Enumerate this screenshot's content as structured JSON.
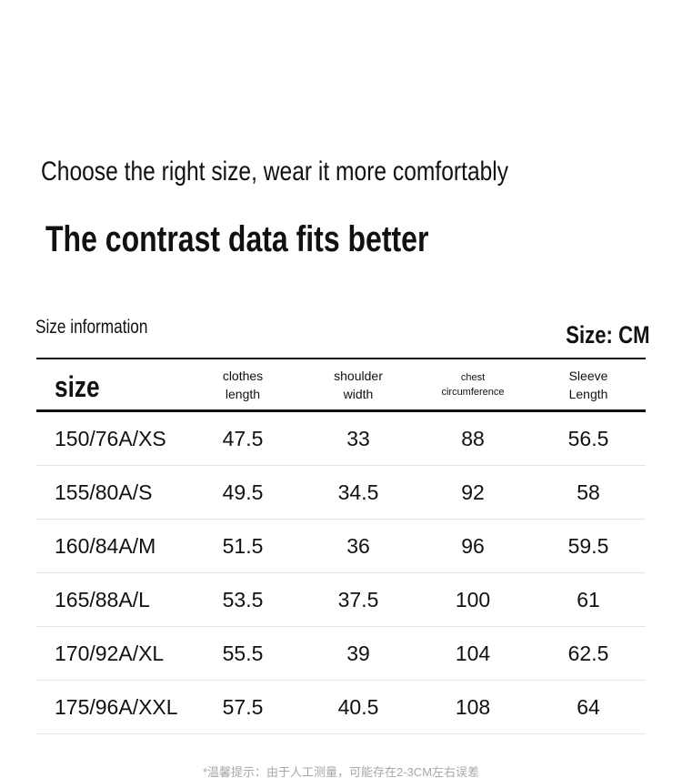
{
  "headline": "Choose the right size, wear it more comfortably",
  "subheadline": "The contrast data fits better",
  "section_label": "Size information",
  "unit_label": "Size: CM",
  "table": {
    "size_header": "size",
    "columns": [
      {
        "line1": "clothes",
        "line2": "length"
      },
      {
        "line1": "shoulder",
        "line2": "width"
      },
      {
        "line1": "chest",
        "line2": "circumference"
      },
      {
        "line1": "Sleeve",
        "line2": "Length"
      }
    ],
    "rows": [
      [
        "150/76A/XS",
        "47.5",
        "33",
        "88",
        "56.5"
      ],
      [
        "155/80A/S",
        "49.5",
        "34.5",
        "92",
        "58"
      ],
      [
        "160/84A/M",
        "51.5",
        "36",
        "96",
        "59.5"
      ],
      [
        "165/88A/L",
        "53.5",
        "37.5",
        "100",
        "61"
      ],
      [
        "170/92A/XL",
        "55.5",
        "39",
        "104",
        "62.5"
      ],
      [
        "175/96A/XXL",
        "57.5",
        "40.5",
        "108",
        "64"
      ]
    ]
  },
  "footnote": "*温馨提示：由于人工测量，可能存在2-3CM左右误差"
}
